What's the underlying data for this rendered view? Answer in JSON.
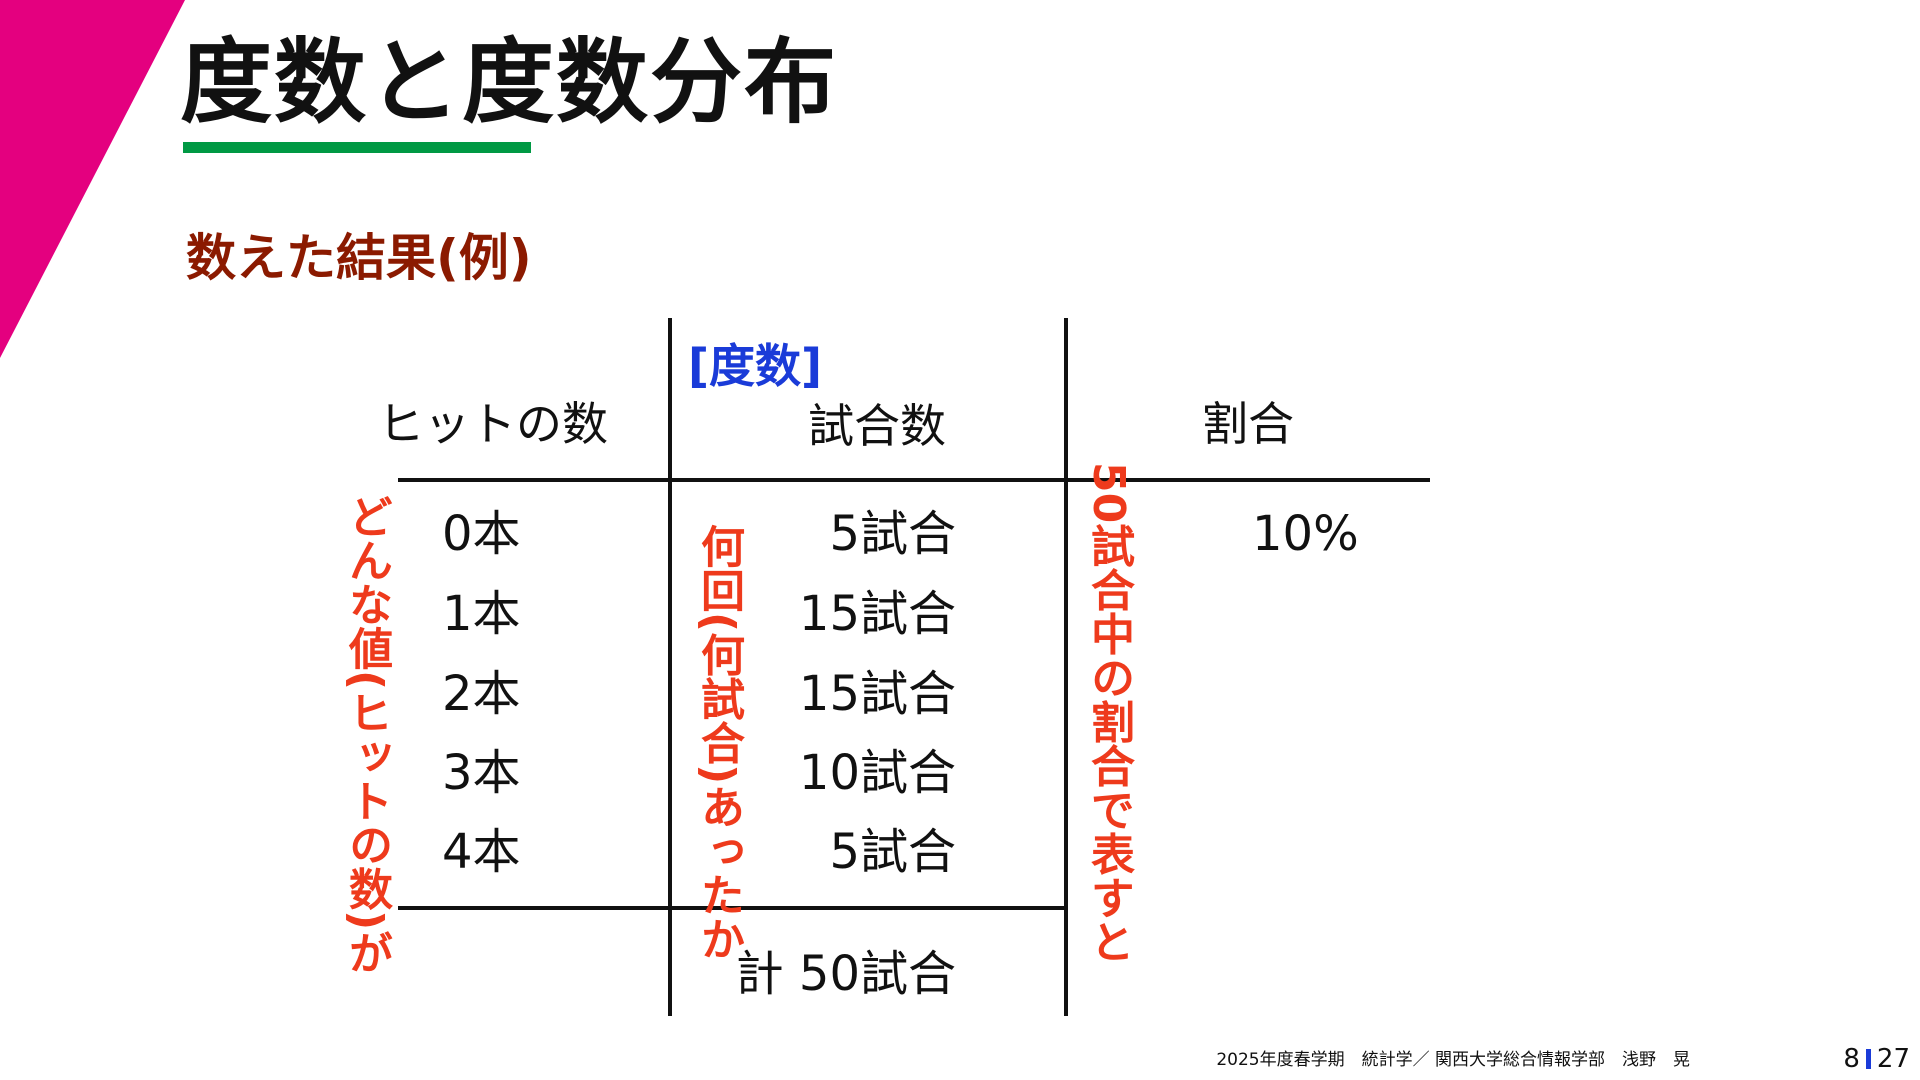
{
  "slide": {
    "title": "度数と度数分布",
    "subtitle": "数えた結果(例)"
  },
  "table": {
    "frequency_label": "[度数]",
    "headers": {
      "value": "ヒットの数",
      "count": "試合数",
      "ratio": "割合"
    },
    "rows": [
      {
        "value": "0本",
        "count": "5試合",
        "ratio": "10%"
      },
      {
        "value": "1本",
        "count": "15試合",
        "ratio": ""
      },
      {
        "value": "2本",
        "count": "15試合",
        "ratio": ""
      },
      {
        "value": "3本",
        "count": "10試合",
        "ratio": ""
      },
      {
        "value": "4本",
        "count": "5試合",
        "ratio": ""
      }
    ],
    "total": "計 50試合"
  },
  "annotations": {
    "value_note": "どんな値(ヒットの数)が",
    "count_note": "何回(何試合)あったか",
    "ratio_note": "50試合中の割合で表すと"
  },
  "footer": {
    "course": "2025年度春学期　統計学／ 関西大学総合情報学部　浅野　晃",
    "page_current": "8",
    "page_total": "27"
  },
  "colors": {
    "accent": "#e4007f",
    "underline": "#009944",
    "subtitle": "#8b1a00",
    "frequency": "#1a3bd8",
    "annotation": "#ee3a1c",
    "page_separator": "#1a3bd8"
  }
}
